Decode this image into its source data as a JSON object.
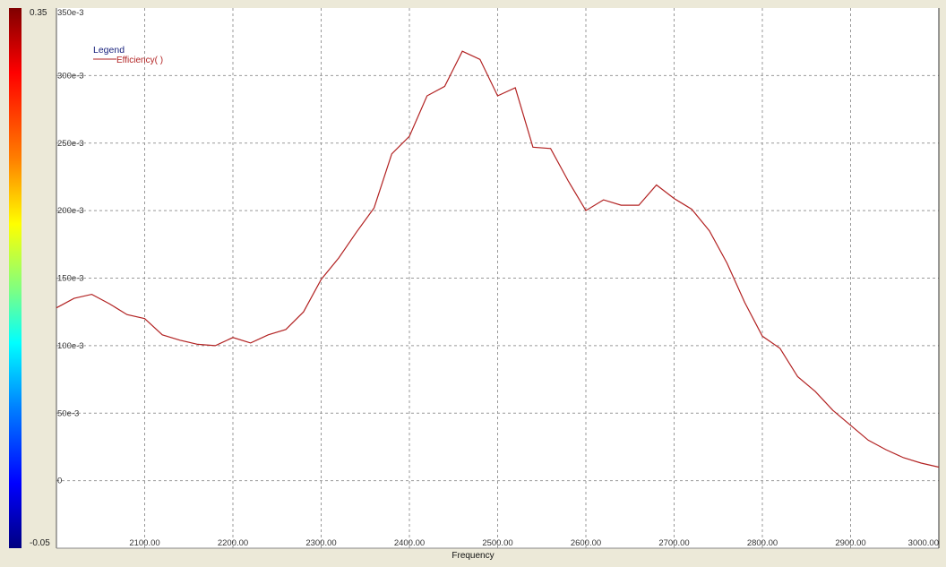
{
  "colorbar": {
    "max_label": "0.35",
    "min_label": "-0.05"
  },
  "chart_data": {
    "type": "line",
    "title": "",
    "xlabel": "Frequency",
    "ylabel": "",
    "xlim": [
      2000,
      3000
    ],
    "ylim": [
      -0.05,
      0.35
    ],
    "grid": true,
    "legend": {
      "title": "Legend",
      "placement": "top-left"
    },
    "x_ticks": [
      {
        "v": 2100,
        "label": "2100.00"
      },
      {
        "v": 2200,
        "label": "2200.00"
      },
      {
        "v": 2300,
        "label": "2300.00"
      },
      {
        "v": 2400,
        "label": "2400.00"
      },
      {
        "v": 2500,
        "label": "2500.00"
      },
      {
        "v": 2600,
        "label": "2600.00"
      },
      {
        "v": 2700,
        "label": "2700.00"
      },
      {
        "v": 2800,
        "label": "2800.00"
      },
      {
        "v": 2900,
        "label": "2900.00"
      },
      {
        "v": 3000,
        "label": "3000.00"
      }
    ],
    "y_ticks": [
      {
        "v": 0,
        "label": "0"
      },
      {
        "v": 0.05,
        "label": "50e-3"
      },
      {
        "v": 0.1,
        "label": "100e-3"
      },
      {
        "v": 0.15,
        "label": "150e-3"
      },
      {
        "v": 0.2,
        "label": "200e-3"
      },
      {
        "v": 0.25,
        "label": "250e-3"
      },
      {
        "v": 0.3,
        "label": "300e-3"
      },
      {
        "v": 0.35,
        "label": "350e-3"
      }
    ],
    "series": [
      {
        "name": "Efficiency( )",
        "color": "#b22222",
        "x": [
          2000,
          2020,
          2040,
          2060,
          2080,
          2100,
          2120,
          2140,
          2160,
          2180,
          2200,
          2220,
          2240,
          2260,
          2280,
          2300,
          2320,
          2340,
          2360,
          2380,
          2400,
          2420,
          2440,
          2460,
          2480,
          2500,
          2520,
          2540,
          2560,
          2580,
          2600,
          2620,
          2640,
          2660,
          2680,
          2700,
          2720,
          2740,
          2760,
          2780,
          2800,
          2820,
          2840,
          2860,
          2880,
          2900,
          2920,
          2940,
          2960,
          2980,
          3000
        ],
        "y": [
          0.128,
          0.135,
          0.138,
          0.131,
          0.123,
          0.12,
          0.108,
          0.104,
          0.101,
          0.1,
          0.106,
          0.102,
          0.108,
          0.112,
          0.125,
          0.149,
          0.165,
          0.184,
          0.202,
          0.242,
          0.255,
          0.285,
          0.292,
          0.318,
          0.312,
          0.285,
          0.291,
          0.247,
          0.246,
          0.222,
          0.2,
          0.208,
          0.204,
          0.204,
          0.219,
          0.209,
          0.201,
          0.185,
          0.161,
          0.132,
          0.107,
          0.098,
          0.077,
          0.066,
          0.052,
          0.041,
          0.03,
          0.023,
          0.017,
          0.013,
          0.01
        ]
      }
    ]
  }
}
